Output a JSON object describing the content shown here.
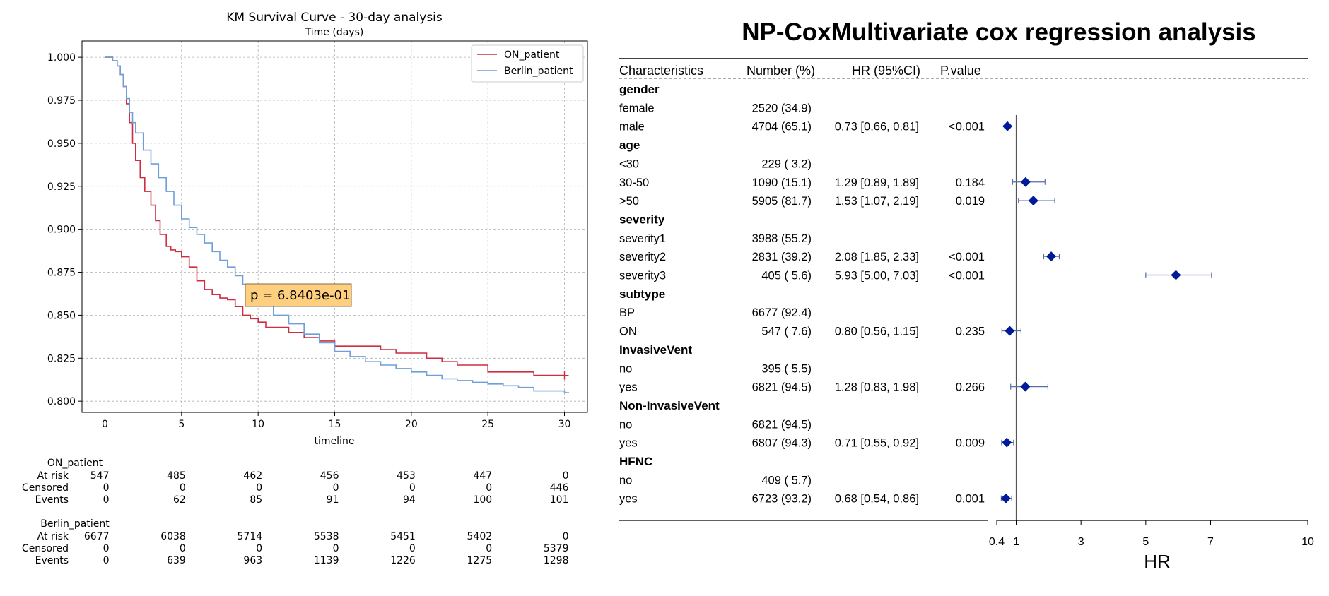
{
  "chart_data": [
    {
      "type": "line",
      "title": "KM Survival Curve - 30-day analysis",
      "subtitle": "Time (days)",
      "xlabel": "timeline",
      "ylabel": "",
      "xlim": [
        -1.5,
        31.5
      ],
      "ylim": [
        0.7935,
        1.0095
      ],
      "x_ticks": [
        "0",
        "5",
        "10",
        "15",
        "20",
        "25",
        "30"
      ],
      "y_ticks": [
        "0.800",
        "0.825",
        "0.850",
        "0.875",
        "0.900",
        "0.925",
        "0.950",
        "0.975",
        "1.000"
      ],
      "grid": true,
      "legend_position": "top-right",
      "annotation": "p = 6.8403e-01",
      "series": [
        {
          "name": "ON_patient",
          "color": "#cc2f42",
          "x": [
            0,
            0.5,
            0.8,
            1.0,
            1.2,
            1.4,
            1.6,
            1.8,
            2.0,
            2.3,
            2.6,
            3.0,
            3.3,
            3.6,
            4.0,
            4.3,
            4.6,
            5.0,
            5.5,
            6.0,
            6.5,
            7.0,
            7.5,
            8.0,
            8.5,
            9.0,
            9.5,
            10.0,
            10.5,
            11.0,
            12.0,
            13.0,
            14.0,
            15.0,
            16.0,
            17.0,
            18.0,
            19.0,
            20.0,
            21.0,
            22.0,
            23.0,
            24.0,
            25.0,
            26.0,
            27.0,
            28.0,
            29.0,
            30.0
          ],
          "y": [
            1.0,
            0.998,
            0.995,
            0.99,
            0.983,
            0.973,
            0.962,
            0.95,
            0.94,
            0.93,
            0.922,
            0.914,
            0.905,
            0.897,
            0.89,
            0.888,
            0.887,
            0.884,
            0.878,
            0.87,
            0.865,
            0.862,
            0.86,
            0.859,
            0.855,
            0.85,
            0.848,
            0.846,
            0.843,
            0.843,
            0.84,
            0.837,
            0.835,
            0.832,
            0.832,
            0.832,
            0.83,
            0.828,
            0.828,
            0.825,
            0.823,
            0.821,
            0.821,
            0.817,
            0.817,
            0.817,
            0.815,
            0.815,
            0.815
          ]
        },
        {
          "name": "Berlin_patient",
          "color": "#6f9fd8",
          "x": [
            0,
            0.5,
            0.8,
            1.0,
            1.2,
            1.4,
            1.6,
            1.8,
            2.0,
            2.5,
            3.0,
            3.5,
            4.0,
            4.5,
            5.0,
            5.5,
            6.0,
            6.5,
            7.0,
            7.5,
            8.0,
            8.5,
            9.0,
            9.5,
            10.0,
            11.0,
            12.0,
            13.0,
            14.0,
            15.0,
            16.0,
            17.0,
            18.0,
            19.0,
            20.0,
            21.0,
            22.0,
            23.0,
            24.0,
            25.0,
            26.0,
            27.0,
            28.0,
            29.0,
            30.0,
            30.3
          ],
          "y": [
            1.0,
            0.998,
            0.995,
            0.99,
            0.983,
            0.976,
            0.968,
            0.962,
            0.956,
            0.946,
            0.938,
            0.93,
            0.922,
            0.914,
            0.906,
            0.901,
            0.897,
            0.892,
            0.887,
            0.882,
            0.878,
            0.873,
            0.868,
            0.863,
            0.858,
            0.85,
            0.845,
            0.839,
            0.834,
            0.829,
            0.826,
            0.823,
            0.821,
            0.819,
            0.817,
            0.815,
            0.813,
            0.812,
            0.811,
            0.81,
            0.809,
            0.808,
            0.806,
            0.806,
            0.805,
            0.805
          ]
        }
      ],
      "risk_table": [
        {
          "name": "ON_patient",
          "rows": [
            {
              "label": "At risk",
              "values": [
                "547",
                "485",
                "462",
                "456",
                "453",
                "447",
                "0"
              ]
            },
            {
              "label": "Censored",
              "values": [
                "0",
                "0",
                "0",
                "0",
                "0",
                "0",
                "446"
              ]
            },
            {
              "label": "Events",
              "values": [
                "0",
                "62",
                "85",
                "91",
                "94",
                "100",
                "101"
              ]
            }
          ]
        },
        {
          "name": "Berlin_patient",
          "rows": [
            {
              "label": "At risk",
              "values": [
                "6677",
                "6038",
                "5714",
                "5538",
                "5451",
                "5402",
                "0"
              ]
            },
            {
              "label": "Censored",
              "values": [
                "0",
                "0",
                "0",
                "0",
                "0",
                "0",
                "5379"
              ]
            },
            {
              "label": "Events",
              "values": [
                "0",
                "639",
                "963",
                "1139",
                "1226",
                "1275",
                "1298"
              ]
            }
          ]
        }
      ]
    },
    {
      "type": "forest",
      "title": "NP-CoxMultivariate cox regression analysis",
      "xlabel": "HR",
      "xlim": [
        0.4,
        10
      ],
      "x_ticks": [
        0.4,
        1,
        3,
        5,
        7,
        10
      ],
      "x_tick_labels": [
        "0.4",
        "1",
        "3",
        "5",
        "7",
        "10"
      ],
      "reference_line": 1,
      "marker_color": "#001a99",
      "ci_color": "#5a6ea8",
      "columns": [
        "Characteristics",
        "Number (%)",
        "HR (95%CI)",
        "P.value"
      ],
      "rows": [
        {
          "label": "gender",
          "group": true
        },
        {
          "label": "female",
          "number": "2520 (34.9)",
          "hr_text": "",
          "p": ""
        },
        {
          "label": "male",
          "number": "4704 (65.1)",
          "hr_text": "0.73 [0.66, 0.81]",
          "p": "<0.001",
          "hr": 0.73,
          "lo": 0.66,
          "hi": 0.81
        },
        {
          "label": "age",
          "group": true
        },
        {
          "label": "<30",
          "number": "229 ( 3.2)",
          "hr_text": "",
          "p": ""
        },
        {
          "label": "30-50",
          "number": "1090 (15.1)",
          "hr_text": "1.29 [0.89, 1.89]",
          "p": "0.184",
          "hr": 1.29,
          "lo": 0.89,
          "hi": 1.89
        },
        {
          "label": ">50",
          "number": "5905 (81.7)",
          "hr_text": "1.53 [1.07, 2.19]",
          "p": "0.019",
          "hr": 1.53,
          "lo": 1.07,
          "hi": 2.19
        },
        {
          "label": "severity",
          "group": true
        },
        {
          "label": "severity1",
          "number": "3988 (55.2)",
          "hr_text": "",
          "p": ""
        },
        {
          "label": "severity2",
          "number": "2831 (39.2)",
          "hr_text": "2.08 [1.85, 2.33]",
          "p": "<0.001",
          "hr": 2.08,
          "lo": 1.85,
          "hi": 2.33
        },
        {
          "label": "severity3",
          "number": "405 ( 5.6)",
          "hr_text": "5.93 [5.00, 7.03]",
          "p": "<0.001",
          "hr": 5.93,
          "lo": 5.0,
          "hi": 7.03
        },
        {
          "label": "subtype",
          "group": true
        },
        {
          "label": "BP",
          "number": "6677 (92.4)",
          "hr_text": "",
          "p": ""
        },
        {
          "label": "ON",
          "number": "547 ( 7.6)",
          "hr_text": "0.80 [0.56, 1.15]",
          "p": "0.235",
          "hr": 0.8,
          "lo": 0.56,
          "hi": 1.15
        },
        {
          "label": "InvasiveVent",
          "group": true
        },
        {
          "label": "no",
          "number": "395 ( 5.5)",
          "hr_text": "",
          "p": ""
        },
        {
          "label": "yes",
          "number": "6821 (94.5)",
          "hr_text": "1.28 [0.83, 1.98]",
          "p": "0.266",
          "hr": 1.28,
          "lo": 0.83,
          "hi": 1.98
        },
        {
          "label": "Non-InvasiveVent",
          "group": true
        },
        {
          "label": "no",
          "number": "6821 (94.5)",
          "hr_text": "",
          "p": ""
        },
        {
          "label": "yes",
          "number": "6807 (94.3)",
          "hr_text": "0.71 [0.55, 0.92]",
          "p": "0.009",
          "hr": 0.71,
          "lo": 0.55,
          "hi": 0.92
        },
        {
          "label": "HFNC",
          "group": true
        },
        {
          "label": "no",
          "number": "409 ( 5.7)",
          "hr_text": "",
          "p": ""
        },
        {
          "label": "yes",
          "number": "6723 (93.2)",
          "hr_text": "0.68 [0.54, 0.86]",
          "p": "0.001",
          "hr": 0.68,
          "lo": 0.54,
          "hi": 0.86
        }
      ]
    }
  ]
}
